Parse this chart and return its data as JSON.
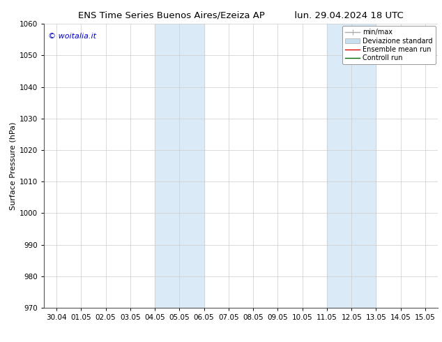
{
  "title_left": "ENS Time Series Buenos Aires/Ezeiza AP",
  "title_right": "lun. 29.04.2024 18 UTC",
  "ylabel": "Surface Pressure (hPa)",
  "ylim": [
    970,
    1060
  ],
  "yticks": [
    970,
    980,
    990,
    1000,
    1010,
    1020,
    1030,
    1040,
    1050,
    1060
  ],
  "xlim": [
    0,
    15
  ],
  "xtick_labels": [
    "30.04",
    "01.05",
    "02.05",
    "03.05",
    "04.05",
    "05.05",
    "06.05",
    "07.05",
    "08.05",
    "09.05",
    "10.05",
    "11.05",
    "12.05",
    "13.05",
    "14.05",
    "15.05"
  ],
  "xtick_positions": [
    0,
    1,
    2,
    3,
    4,
    5,
    6,
    7,
    8,
    9,
    10,
    11,
    12,
    13,
    14,
    15
  ],
  "shaded_bands": [
    {
      "x_start": 4,
      "x_end": 6
    },
    {
      "x_start": 11,
      "x_end": 13
    }
  ],
  "shaded_color": "#daeaf7",
  "watermark": "© woitalia.it",
  "watermark_color": "#0000cc",
  "legend_entries": [
    {
      "label": "min/max",
      "color": "#aaaaaa",
      "lw": 1.0
    },
    {
      "label": "Deviazione standard",
      "color": "#c8dff0",
      "lw": 5
    },
    {
      "label": "Ensemble mean run",
      "color": "#dd0000",
      "lw": 1.0
    },
    {
      "label": "Controll run",
      "color": "#006600",
      "lw": 1.0
    }
  ],
  "background_color": "#ffffff",
  "grid_color": "#cccccc",
  "title_fontsize": 9.5,
  "ylabel_fontsize": 8,
  "tick_fontsize": 7.5,
  "watermark_fontsize": 8,
  "legend_fontsize": 7
}
